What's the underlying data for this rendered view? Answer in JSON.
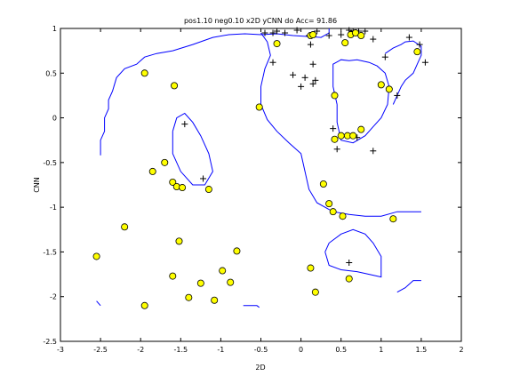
{
  "chart_data": {
    "type": "scatter",
    "title": "pos1.10 neg0.10 x2D yCNN do Acc= 91.86",
    "xlabel": "2D",
    "ylabel": "CNN",
    "xlim": [
      -3,
      2
    ],
    "ylim": [
      -2.5,
      1
    ],
    "xticks": [
      -3,
      -2.5,
      -2,
      -1.5,
      -1,
      -0.5,
      0,
      0.5,
      1,
      1.5,
      2
    ],
    "xtick_labels": [
      "-3",
      "-2.5",
      "-2",
      "-1.5",
      "-1",
      "-0.5",
      "0",
      "0.5",
      "1",
      "1.5",
      "2"
    ],
    "yticks": [
      1,
      0.5,
      0,
      -0.5,
      -1,
      -1.5,
      -2,
      -2.5
    ],
    "ytick_labels": [
      "1",
      "0.5",
      "0",
      "-0.5",
      "-1",
      "-1.5",
      "-2",
      "-2.5"
    ],
    "grid": false,
    "colors": {
      "boundary": "#0000ff",
      "circle_fill": "#ffff00",
      "circle_edge": "#000000",
      "plus": "#000000"
    },
    "series": [
      {
        "marker": "plus",
        "points": [
          [
            -0.45,
            0.95
          ],
          [
            -0.35,
            0.95
          ],
          [
            -0.3,
            0.97
          ],
          [
            -0.2,
            0.95
          ],
          [
            -0.05,
            0.98
          ],
          [
            0.1,
            0.92
          ],
          [
            0.2,
            0.97
          ],
          [
            0.35,
            0.92
          ],
          [
            0.5,
            0.93
          ],
          [
            0.6,
            0.98
          ],
          [
            0.65,
            0.97
          ],
          [
            0.72,
            0.97
          ],
          [
            0.8,
            0.97
          ],
          [
            0.9,
            0.88
          ],
          [
            1.05,
            0.68
          ],
          [
            1.35,
            0.9
          ],
          [
            1.48,
            0.82
          ],
          [
            1.55,
            0.62
          ],
          [
            -0.35,
            0.62
          ],
          [
            -0.1,
            0.48
          ],
          [
            0.0,
            0.35
          ],
          [
            0.05,
            0.45
          ],
          [
            0.15,
            0.38
          ],
          [
            0.18,
            0.42
          ],
          [
            0.15,
            0.6
          ],
          [
            0.12,
            0.82
          ],
          [
            0.4,
            -0.12
          ],
          [
            0.45,
            -0.35
          ],
          [
            0.7,
            -0.22
          ],
          [
            0.9,
            -0.37
          ],
          [
            1.2,
            0.25
          ],
          [
            -1.45,
            -0.07
          ],
          [
            -1.22,
            -0.68
          ],
          [
            0.6,
            -1.62
          ]
        ]
      },
      {
        "marker": "circle",
        "points": [
          [
            -0.3,
            0.83
          ],
          [
            0.12,
            0.92
          ],
          [
            0.15,
            0.93
          ],
          [
            0.55,
            0.84
          ],
          [
            0.62,
            0.93
          ],
          [
            0.68,
            0.95
          ],
          [
            0.75,
            0.92
          ],
          [
            1.0,
            0.37
          ],
          [
            1.1,
            0.32
          ],
          [
            1.45,
            0.74
          ],
          [
            0.42,
            0.25
          ],
          [
            -0.52,
            0.12
          ],
          [
            -1.95,
            0.5
          ],
          [
            -1.58,
            0.36
          ],
          [
            -1.85,
            -0.6
          ],
          [
            -1.7,
            -0.5
          ],
          [
            -1.6,
            -0.72
          ],
          [
            -1.55,
            -0.77
          ],
          [
            -1.48,
            -0.78
          ],
          [
            -1.15,
            -0.8
          ],
          [
            0.42,
            -0.24
          ],
          [
            0.5,
            -0.2
          ],
          [
            0.58,
            -0.2
          ],
          [
            0.65,
            -0.2
          ],
          [
            0.75,
            -0.13
          ],
          [
            0.28,
            -0.74
          ],
          [
            0.35,
            -0.96
          ],
          [
            0.4,
            -1.05
          ],
          [
            0.52,
            -1.1
          ],
          [
            0.6,
            -1.8
          ],
          [
            1.15,
            -1.13
          ],
          [
            0.12,
            -1.68
          ],
          [
            0.18,
            -1.95
          ],
          [
            -2.55,
            -1.55
          ],
          [
            -2.2,
            -1.22
          ],
          [
            -1.95,
            -2.1
          ],
          [
            -1.52,
            -1.38
          ],
          [
            -1.6,
            -1.77
          ],
          [
            -1.4,
            -2.01
          ],
          [
            -1.25,
            -1.85
          ],
          [
            -1.08,
            -2.04
          ],
          [
            -0.98,
            -1.71
          ],
          [
            -0.88,
            -1.84
          ],
          [
            -0.8,
            -1.49
          ]
        ]
      }
    ],
    "decision_boundary": [
      [
        [
          -2.5,
          -0.42
        ],
        [
          -2.5,
          -0.25
        ],
        [
          -2.45,
          -0.15
        ],
        [
          -2.45,
          0.0
        ],
        [
          -2.4,
          0.1
        ],
        [
          -2.4,
          0.2
        ],
        [
          -2.35,
          0.3
        ],
        [
          -2.3,
          0.45
        ],
        [
          -2.2,
          0.55
        ],
        [
          -2.05,
          0.6
        ],
        [
          -1.95,
          0.68
        ],
        [
          -1.8,
          0.72
        ],
        [
          -1.6,
          0.75
        ],
        [
          -1.35,
          0.82
        ],
        [
          -1.1,
          0.9
        ],
        [
          -0.9,
          0.93
        ],
        [
          -0.7,
          0.94
        ],
        [
          -0.5,
          0.93
        ],
        [
          -0.3,
          0.94
        ],
        [
          -0.1,
          0.92
        ],
        [
          0.1,
          0.91
        ],
        [
          0.25,
          0.9
        ],
        [
          0.35,
          0.95
        ],
        [
          0.35,
          1.0
        ]
      ],
      [
        [
          -0.5,
          0.95
        ],
        [
          -0.42,
          0.85
        ],
        [
          -0.38,
          0.7
        ],
        [
          -0.45,
          0.55
        ],
        [
          -0.5,
          0.35
        ],
        [
          -0.5,
          0.15
        ],
        [
          -0.42,
          -0.02
        ],
        [
          -0.3,
          -0.15
        ],
        [
          -0.15,
          -0.28
        ],
        [
          0.0,
          -0.4
        ],
        [
          0.05,
          -0.6
        ],
        [
          0.1,
          -0.8
        ],
        [
          0.2,
          -0.95
        ],
        [
          0.4,
          -1.05
        ],
        [
          0.6,
          -1.08
        ],
        [
          0.8,
          -1.1
        ],
        [
          1.0,
          -1.1
        ],
        [
          1.2,
          -1.05
        ],
        [
          1.5,
          -1.05
        ]
      ],
      [
        [
          0.45,
          0.15
        ],
        [
          0.4,
          0.35
        ],
        [
          0.4,
          0.6
        ],
        [
          0.5,
          0.65
        ],
        [
          0.6,
          0.64
        ],
        [
          0.7,
          0.65
        ],
        [
          0.85,
          0.62
        ],
        [
          0.95,
          0.58
        ],
        [
          1.05,
          0.5
        ],
        [
          1.1,
          0.35
        ],
        [
          1.08,
          0.15
        ],
        [
          1.0,
          0.0
        ],
        [
          0.9,
          -0.1
        ],
        [
          0.8,
          -0.2
        ],
        [
          0.65,
          -0.28
        ],
        [
          0.5,
          -0.25
        ],
        [
          0.45,
          -0.05
        ],
        [
          0.45,
          0.15
        ]
      ],
      [
        [
          1.05,
          0.72
        ],
        [
          1.15,
          0.78
        ],
        [
          1.25,
          0.82
        ],
        [
          1.3,
          0.85
        ],
        [
          1.4,
          0.86
        ],
        [
          1.5,
          0.8
        ],
        [
          1.5,
          0.7
        ],
        [
          1.45,
          0.6
        ],
        [
          1.4,
          0.5
        ],
        [
          1.3,
          0.42
        ],
        [
          1.25,
          0.35
        ],
        [
          1.2,
          0.25
        ],
        [
          1.15,
          0.15
        ]
      ],
      [
        [
          -1.6,
          -0.15
        ],
        [
          -1.55,
          0.0
        ],
        [
          -1.45,
          0.05
        ],
        [
          -1.35,
          -0.05
        ],
        [
          -1.25,
          -0.2
        ],
        [
          -1.15,
          -0.4
        ],
        [
          -1.1,
          -0.6
        ],
        [
          -1.2,
          -0.75
        ],
        [
          -1.35,
          -0.75
        ],
        [
          -1.5,
          -0.6
        ],
        [
          -1.6,
          -0.4
        ],
        [
          -1.6,
          -0.15
        ]
      ],
      [
        [
          0.3,
          -1.5
        ],
        [
          0.35,
          -1.4
        ],
        [
          0.5,
          -1.3
        ],
        [
          0.65,
          -1.25
        ],
        [
          0.8,
          -1.3
        ],
        [
          0.9,
          -1.4
        ],
        [
          1.0,
          -1.55
        ],
        [
          1.0,
          -1.78
        ],
        [
          0.85,
          -1.75
        ],
        [
          0.7,
          -1.72
        ],
        [
          0.5,
          -1.7
        ],
        [
          0.35,
          -1.65
        ],
        [
          0.3,
          -1.5
        ]
      ],
      [
        [
          1.2,
          -1.95
        ],
        [
          1.3,
          -1.9
        ],
        [
          1.4,
          -1.82
        ],
        [
          1.5,
          -1.82
        ]
      ],
      [
        [
          -2.55,
          -2.05
        ],
        [
          -2.5,
          -2.1
        ]
      ],
      [
        [
          -0.72,
          -2.1
        ],
        [
          -0.55,
          -2.1
        ],
        [
          -0.52,
          -2.12
        ]
      ]
    ]
  }
}
